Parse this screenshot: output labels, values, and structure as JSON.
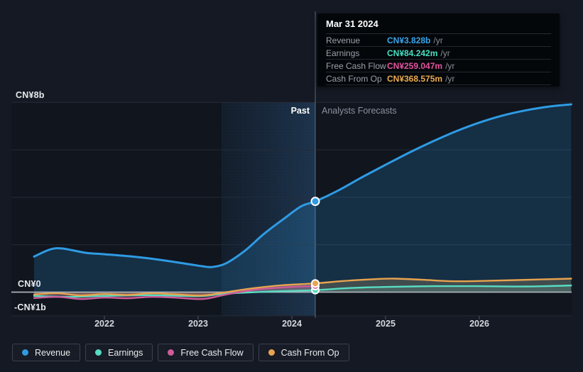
{
  "y_axis": {
    "top": "CN¥8b",
    "zero": "CN¥0",
    "bottom": "-CN¥1b"
  },
  "x_axis": {
    "years": [
      "2022",
      "2023",
      "2024",
      "2025",
      "2026"
    ]
  },
  "header": {
    "past_label": "Past",
    "forecast_label": "Analysts Forecasts"
  },
  "tooltip": {
    "title": "Mar 31 2024",
    "suffix": "/yr",
    "rows": [
      {
        "label": "Revenue",
        "value": "CN¥3.828b",
        "color": "#38a5ec"
      },
      {
        "label": "Earnings",
        "value": "CN¥84.242m",
        "color": "#45e0c1"
      },
      {
        "label": "Free Cash Flow",
        "value": "CN¥259.047m",
        "color": "#e5549f"
      },
      {
        "label": "Cash From Op",
        "value": "CN¥368.575m",
        "color": "#ebaa4f"
      }
    ]
  },
  "legend": {
    "items": [
      {
        "label": "Revenue",
        "color": "#2f9be3"
      },
      {
        "label": "Earnings",
        "color": "#57dcc2"
      },
      {
        "label": "Free Cash Flow",
        "color": "#cf5b9a"
      },
      {
        "label": "Cash From Op",
        "color": "#e8a44f"
      }
    ]
  },
  "chart_data": {
    "type": "line",
    "title": "Earnings and Revenue Growth (past and analyst forecast)",
    "x_unit": "year",
    "xlim": [
      2021.25,
      2026.98
    ],
    "ylim_billions": [
      -1,
      8
    ],
    "y_gridlines_billions": [
      8,
      6,
      4,
      2,
      -1
    ],
    "zero_line_billions": 0,
    "year_ticks": [
      2022,
      2023,
      2024,
      2025,
      2026
    ],
    "divider_x": 2024.25,
    "past_band": [
      2023.25,
      2024.25
    ],
    "grid": true,
    "legend_position": "bottom",
    "series": [
      {
        "name": "Earnings",
        "color": "#57dcc2",
        "width": 2.4,
        "fill_opacity": 0.18,
        "marker_value": 0.084242,
        "past": [
          [
            2021.25,
            -0.16
          ],
          [
            2021.6,
            -0.2
          ],
          [
            2022.0,
            -0.16
          ],
          [
            2022.5,
            -0.13
          ],
          [
            2023.0,
            -0.17
          ],
          [
            2023.25,
            -0.08
          ],
          [
            2023.5,
            -0.02
          ],
          [
            2023.8,
            0.03
          ],
          [
            2024.25,
            0.084242
          ]
        ],
        "forecast": [
          [
            2024.6,
            0.17
          ],
          [
            2025.0,
            0.22
          ],
          [
            2025.5,
            0.25
          ],
          [
            2026.0,
            0.25
          ],
          [
            2026.5,
            0.24
          ],
          [
            2026.98,
            0.28
          ]
        ]
      },
      {
        "name": "Free Cash Flow",
        "color": "#cf5b9a",
        "width": 2.4,
        "fill_opacity": 0.3,
        "marker_value": 0.259047,
        "past": [
          [
            2021.25,
            -0.25
          ],
          [
            2021.5,
            -0.2
          ],
          [
            2021.75,
            -0.29
          ],
          [
            2022.0,
            -0.23
          ],
          [
            2022.25,
            -0.26
          ],
          [
            2022.5,
            -0.2
          ],
          [
            2022.75,
            -0.23
          ],
          [
            2023.05,
            -0.29
          ],
          [
            2023.3,
            -0.1
          ],
          [
            2023.6,
            0.1
          ],
          [
            2023.9,
            0.2
          ],
          [
            2024.25,
            0.259047
          ]
        ],
        "forecast": []
      },
      {
        "name": "Cash From Op",
        "color": "#e8a44f",
        "width": 2.4,
        "fill_opacity": 0.26,
        "marker_value": 0.368575,
        "past": [
          [
            2021.25,
            -0.1
          ],
          [
            2021.5,
            -0.05
          ],
          [
            2021.75,
            -0.14
          ],
          [
            2022.0,
            -0.08
          ],
          [
            2022.25,
            -0.12
          ],
          [
            2022.5,
            -0.05
          ],
          [
            2022.75,
            -0.09
          ],
          [
            2023.05,
            -0.14
          ],
          [
            2023.3,
            0.0
          ],
          [
            2023.6,
            0.17
          ],
          [
            2023.9,
            0.29
          ],
          [
            2024.25,
            0.368575
          ]
        ],
        "forecast": [
          [
            2024.55,
            0.47
          ],
          [
            2024.9,
            0.55
          ],
          [
            2025.1,
            0.57
          ],
          [
            2025.4,
            0.52
          ],
          [
            2025.7,
            0.46
          ],
          [
            2026.0,
            0.47
          ],
          [
            2026.4,
            0.51
          ],
          [
            2026.98,
            0.57
          ]
        ]
      },
      {
        "name": "Revenue",
        "color": "#2f9be3",
        "width": 3,
        "fill_opacity": 0.2,
        "marker_value": 3.828,
        "past": [
          [
            2021.25,
            1.5
          ],
          [
            2021.42,
            1.8
          ],
          [
            2021.55,
            1.84
          ],
          [
            2021.8,
            1.66
          ],
          [
            2022.0,
            1.6
          ],
          [
            2022.3,
            1.5
          ],
          [
            2022.6,
            1.36
          ],
          [
            2022.9,
            1.18
          ],
          [
            2023.05,
            1.09
          ],
          [
            2023.15,
            1.06
          ],
          [
            2023.3,
            1.22
          ],
          [
            2023.5,
            1.75
          ],
          [
            2023.7,
            2.45
          ],
          [
            2023.9,
            3.05
          ],
          [
            2024.1,
            3.62
          ],
          [
            2024.25,
            3.828
          ]
        ],
        "forecast": [
          [
            2024.5,
            4.3
          ],
          [
            2024.75,
            4.85
          ],
          [
            2025.0,
            5.37
          ],
          [
            2025.25,
            5.88
          ],
          [
            2025.5,
            6.35
          ],
          [
            2025.75,
            6.78
          ],
          [
            2026.0,
            7.15
          ],
          [
            2026.25,
            7.45
          ],
          [
            2026.5,
            7.67
          ],
          [
            2026.75,
            7.83
          ],
          [
            2026.98,
            7.92
          ]
        ]
      }
    ]
  }
}
